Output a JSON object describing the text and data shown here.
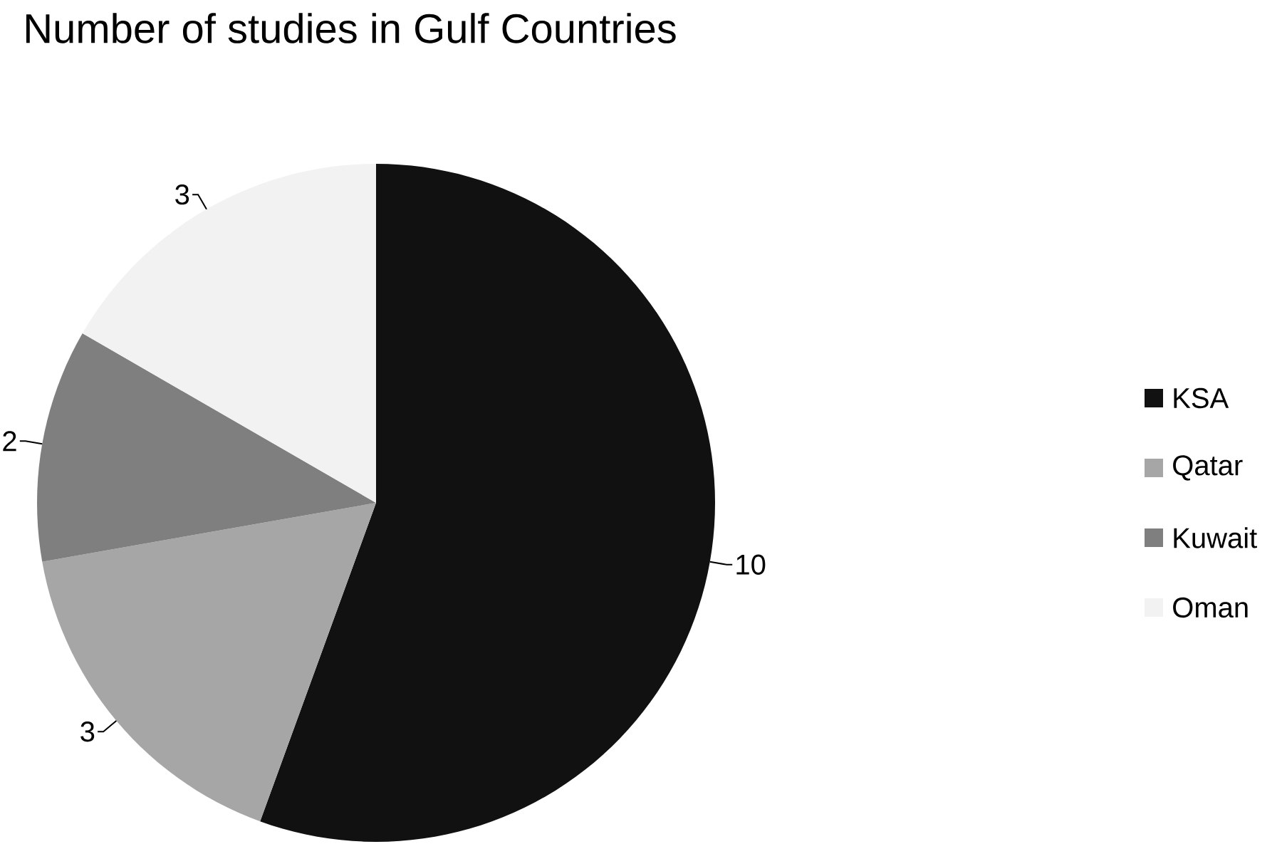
{
  "chart_data": {
    "type": "pie",
    "title": "Number of studies in Gulf Countries",
    "categories": [
      "KSA",
      "Qatar",
      "Kuwait",
      "Oman"
    ],
    "values": [
      10,
      3,
      2,
      3
    ],
    "colors": [
      "#111111",
      "#a6a6a6",
      "#7f7f7f",
      "#f2f2f2"
    ],
    "data_labels": true,
    "legend": "right"
  }
}
